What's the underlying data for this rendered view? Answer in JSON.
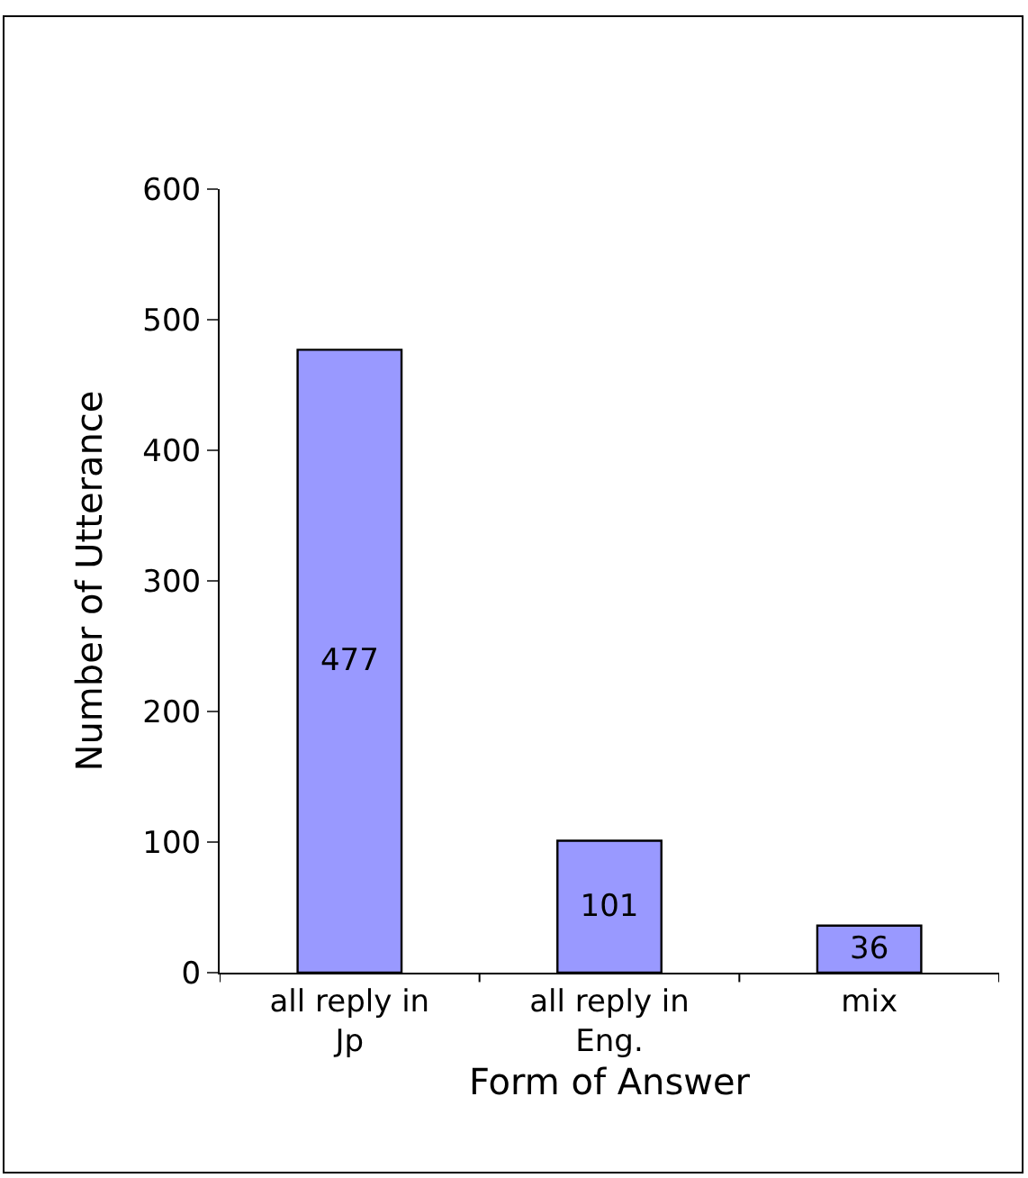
{
  "chart_data": {
    "type": "bar",
    "xlabel": "Form of Answer",
    "ylabel": "Number of Utterance",
    "categories": [
      "all reply in Jp",
      "all reply in Eng.",
      "mix"
    ],
    "values": [
      477,
      101,
      36
    ],
    "color": "#9999ff",
    "ylim": [
      0,
      600
    ],
    "yticks": [
      0,
      100,
      200,
      300,
      400,
      500,
      600
    ],
    "data_labels": true
  }
}
